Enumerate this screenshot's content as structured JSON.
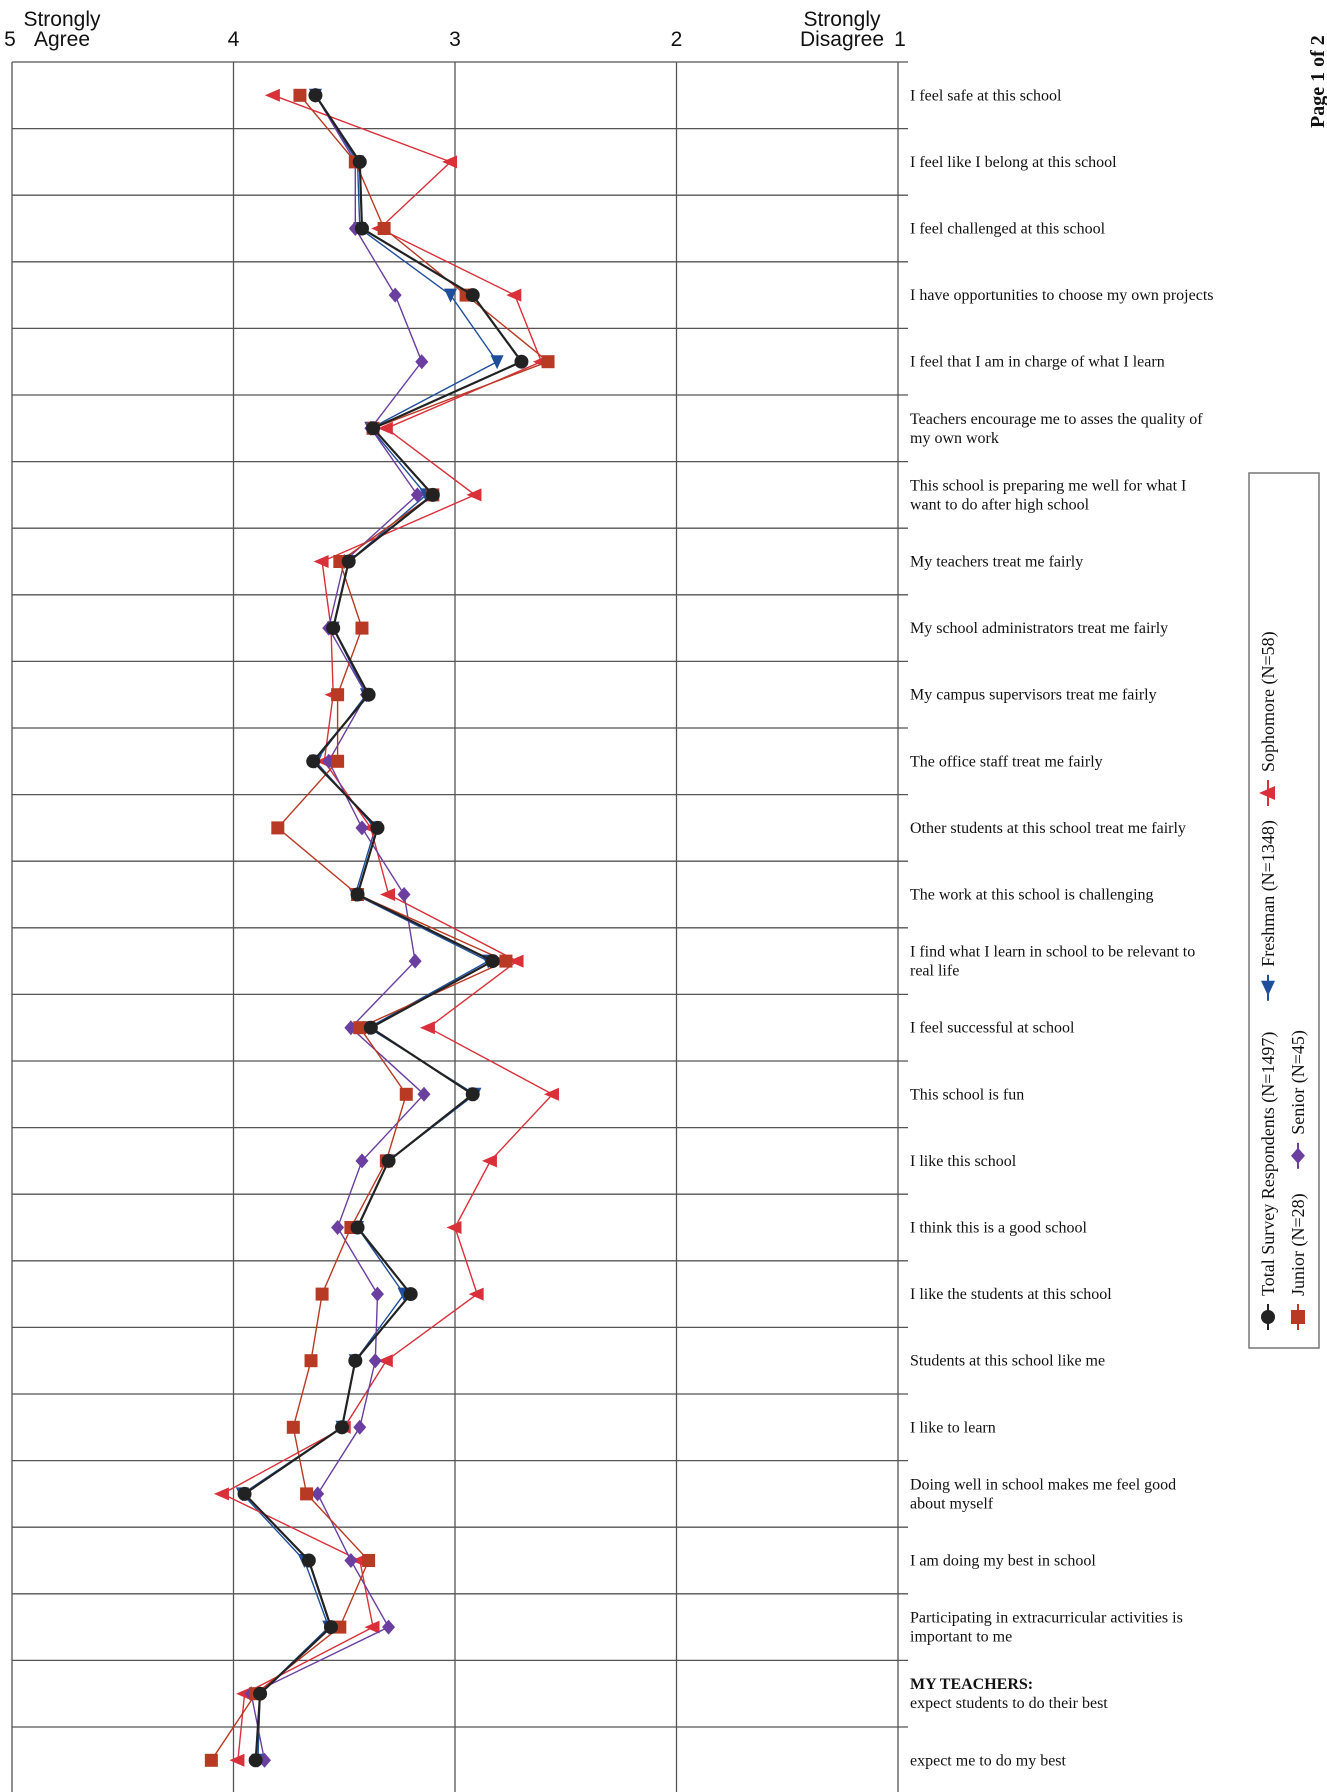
{
  "page_label": "Page 1 of 2",
  "chart_data": {
    "type": "line",
    "orientation": "horizontal",
    "x_axis": {
      "ticks": [
        5,
        4,
        3,
        2,
        1
      ],
      "range": [
        5,
        1
      ],
      "left_label": [
        "Strongly",
        "Agree"
      ],
      "right_label": [
        "Strongly",
        "Disagree"
      ]
    },
    "grid": true,
    "legend_position": "right",
    "legend": [
      {
        "name": "Total Survey Respondents (N=1497)",
        "color": "#222222",
        "marker": "circle"
      },
      {
        "name": "Junior (N=28)",
        "color": "#b83a24",
        "marker": "square"
      },
      {
        "name": "Freshman (N=1348)",
        "color": "#1f4e9a",
        "marker": "triangle-down"
      },
      {
        "name": "Senior (N=45)",
        "color": "#6b3fa0",
        "marker": "diamond"
      },
      {
        "name": "Sophomore (N=58)",
        "color": "#d9303a",
        "marker": "triangle-left"
      }
    ],
    "categories": [
      [
        "I feel safe at this school"
      ],
      [
        "I feel like I belong at this school"
      ],
      [
        "I feel challenged at this school"
      ],
      [
        "I have opportunities to choose my own projects"
      ],
      [
        "I feel that I am in charge of what I learn"
      ],
      [
        "Teachers encourage me to asses the quality of",
        "my own work"
      ],
      [
        "This school is preparing me well for what I",
        "want to do after high school"
      ],
      [
        "My teachers treat me fairly"
      ],
      [
        "My school administrators treat me fairly"
      ],
      [
        "My campus supervisors treat me fairly"
      ],
      [
        "The office staff treat me fairly"
      ],
      [
        "Other students at this school treat me fairly"
      ],
      [
        "The work at this school is challenging"
      ],
      [
        "I find what I learn in school to be relevant to",
        "real life"
      ],
      [
        "I feel successful at school"
      ],
      [
        "This school is fun"
      ],
      [
        "I like this school"
      ],
      [
        "I think this is a good school"
      ],
      [
        "I like the students at this school"
      ],
      [
        "Students at this school like me"
      ],
      [
        "I like to learn"
      ],
      [
        "Doing well in school makes me feel good",
        "about myself"
      ],
      [
        "I am doing my best in school"
      ],
      [
        "Participating in extracurricular activities is",
        "important to me"
      ],
      [
        "MY TEACHERS:",
        "expect students to do their best"
      ],
      [
        "expect me to do my best"
      ]
    ],
    "series": [
      {
        "name": "Freshman (N=1348)",
        "color": "#1f4e9a",
        "marker": "triangle-down",
        "values": [
          3.63,
          3.44,
          3.43,
          3.02,
          2.81,
          3.38,
          3.13,
          3.48,
          3.55,
          3.4,
          3.63,
          3.36,
          3.45,
          2.85,
          3.39,
          2.91,
          3.3,
          3.44,
          3.23,
          3.45,
          3.51,
          3.96,
          3.68,
          3.57,
          3.88,
          3.89
        ]
      },
      {
        "name": "Sophomore (N=58)",
        "color": "#d9303a",
        "marker": "triangle-left",
        "values": [
          3.82,
          3.02,
          3.34,
          2.73,
          2.61,
          3.31,
          2.91,
          3.6,
          3.56,
          3.55,
          3.59,
          3.38,
          3.3,
          2.72,
          3.12,
          2.56,
          2.84,
          3.0,
          2.9,
          3.31,
          3.5,
          4.05,
          3.43,
          3.37,
          3.95,
          3.98
        ]
      },
      {
        "name": "Senior (N=45)",
        "color": "#6b3fa0",
        "marker": "diamond",
        "values": [
          3.63,
          3.45,
          3.45,
          3.27,
          3.15,
          3.38,
          3.17,
          3.5,
          3.57,
          3.4,
          3.57,
          3.42,
          3.23,
          3.18,
          3.47,
          3.14,
          3.42,
          3.53,
          3.35,
          3.36,
          3.43,
          3.62,
          3.47,
          3.3,
          3.92,
          3.86
        ]
      },
      {
        "name": "Junior (N=28)",
        "color": "#b83a24",
        "marker": "square",
        "values": [
          3.7,
          3.45,
          3.32,
          2.95,
          2.58,
          3.37,
          3.1,
          3.52,
          3.42,
          3.53,
          3.53,
          3.8,
          3.44,
          2.77,
          3.43,
          3.22,
          3.31,
          3.47,
          3.6,
          3.65,
          3.73,
          3.67,
          3.39,
          3.52,
          3.9,
          4.1
        ]
      },
      {
        "name": "Total Survey Respondents (N=1497)",
        "color": "#222222",
        "marker": "circle",
        "values": [
          3.63,
          3.43,
          3.42,
          2.92,
          2.7,
          3.37,
          3.1,
          3.48,
          3.55,
          3.39,
          3.64,
          3.35,
          3.44,
          2.83,
          3.38,
          2.92,
          3.3,
          3.44,
          3.2,
          3.45,
          3.51,
          3.95,
          3.66,
          3.56,
          3.88,
          3.9
        ]
      }
    ]
  }
}
